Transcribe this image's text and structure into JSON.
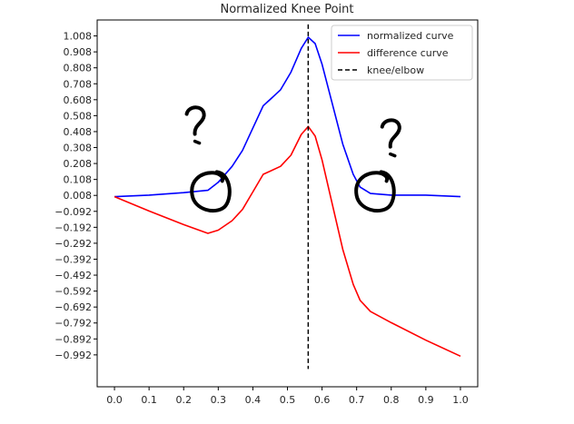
{
  "chart_data": {
    "type": "line",
    "title": "Normalized Knee Point",
    "xlabel": "",
    "ylabel": "",
    "xlim": [
      -0.05,
      1.05
    ],
    "ylim": [
      -1.192,
      1.108
    ],
    "xticks": [
      0.0,
      0.1,
      0.2,
      0.3,
      0.4,
      0.5,
      0.6,
      0.7,
      0.8,
      0.9,
      1.0
    ],
    "xtick_labels": [
      "0.0",
      "0.1",
      "0.2",
      "0.3",
      "0.4",
      "0.5",
      "0.6",
      "0.7",
      "0.8",
      "0.9",
      "1.0"
    ],
    "yticks": [
      1.008,
      0.908,
      0.808,
      0.708,
      0.608,
      0.508,
      0.408,
      0.308,
      0.208,
      0.108,
      0.008,
      -0.092,
      -0.192,
      -0.292,
      -0.392,
      -0.492,
      -0.592,
      -0.692,
      -0.792,
      -0.892,
      -0.992
    ],
    "ytick_labels": [
      "1.008",
      "0.908",
      "0.808",
      "0.708",
      "0.608",
      "0.508",
      "0.408",
      "0.308",
      "0.208",
      "0.108",
      "0.008",
      "−0.092",
      "−0.192",
      "−0.292",
      "−0.392",
      "−0.492",
      "−0.592",
      "−0.692",
      "−0.792",
      "−0.892",
      "−0.992"
    ],
    "grid": false,
    "legend_position": "top-right",
    "series": [
      {
        "name": "normalized curve",
        "color": "#0000ff",
        "style": "solid",
        "x": [
          0.0,
          0.1,
          0.2,
          0.27,
          0.3,
          0.34,
          0.37,
          0.4,
          0.43,
          0.45,
          0.48,
          0.51,
          0.54,
          0.56,
          0.58,
          0.6,
          0.63,
          0.66,
          0.69,
          0.71,
          0.74,
          0.8,
          0.9,
          1.0
        ],
        "y": [
          0.0,
          0.01,
          0.025,
          0.04,
          0.09,
          0.19,
          0.29,
          0.43,
          0.57,
          0.61,
          0.67,
          0.78,
          0.93,
          1.0,
          0.96,
          0.83,
          0.58,
          0.33,
          0.14,
          0.06,
          0.02,
          0.01,
          0.01,
          0.0
        ]
      },
      {
        "name": "difference curve",
        "color": "#ff0000",
        "style": "solid",
        "x": [
          0.0,
          0.1,
          0.2,
          0.27,
          0.3,
          0.34,
          0.37,
          0.4,
          0.43,
          0.45,
          0.48,
          0.51,
          0.54,
          0.56,
          0.58,
          0.6,
          0.63,
          0.66,
          0.69,
          0.71,
          0.74,
          0.8,
          0.9,
          1.0
        ],
        "y": [
          0.0,
          -0.09,
          -0.175,
          -0.23,
          -0.21,
          -0.15,
          -0.08,
          0.03,
          0.14,
          0.16,
          0.19,
          0.26,
          0.39,
          0.44,
          0.38,
          0.23,
          -0.05,
          -0.33,
          -0.55,
          -0.65,
          -0.72,
          -0.79,
          -0.9,
          -1.0
        ]
      }
    ],
    "vlines": [
      {
        "name": "knee/elbow",
        "x": 0.56,
        "y_range": [
          -1.08,
          1.08
        ],
        "color": "#000000",
        "style": "dashed"
      }
    ],
    "annotations": [
      {
        "kind": "handwritten-circle",
        "x": 0.28,
        "y": 0.03
      },
      {
        "kind": "handwritten-circle",
        "x": 0.755,
        "y": 0.03
      },
      {
        "kind": "handwritten-question-mark",
        "x": 0.235,
        "y": 0.45
      },
      {
        "kind": "handwritten-question-mark",
        "x": 0.8,
        "y": 0.37
      }
    ]
  }
}
